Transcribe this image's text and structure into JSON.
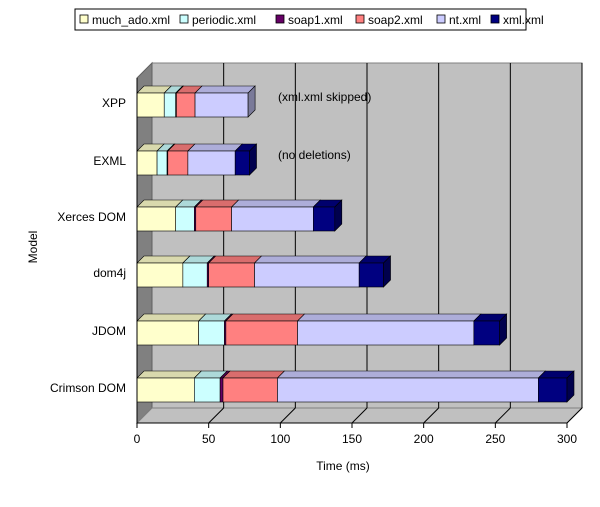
{
  "chart_data": {
    "type": "bar",
    "orientation": "horizontal",
    "stacked": true,
    "three_d": true,
    "categories": [
      "XPP",
      "EXML",
      "Xerces DOM",
      "dom4j",
      "JDOM",
      "Crimson DOM"
    ],
    "series": [
      {
        "name": "much_ado.xml",
        "color": "#FFFFCC",
        "values": [
          19,
          14,
          27,
          32,
          43,
          40
        ]
      },
      {
        "name": "periodic.xml",
        "color": "#CCFFFF",
        "values": [
          8,
          7,
          13,
          17,
          18,
          18
        ]
      },
      {
        "name": "soap1.xml",
        "color": "#660066",
        "values": [
          0.5,
          0.5,
          1,
          1,
          1,
          2
        ]
      },
      {
        "name": "soap2.xml",
        "color": "#FF8080",
        "values": [
          13,
          14,
          25,
          32,
          50,
          38
        ]
      },
      {
        "name": "nt.xml",
        "color": "#CCCCFF",
        "values": [
          37,
          33,
          57,
          73,
          123,
          182
        ]
      },
      {
        "name": "xml.xml",
        "color": "#000080",
        "values": [
          0,
          10,
          15,
          17,
          18,
          20
        ]
      }
    ],
    "xlabel": "Time (ms)",
    "ylabel": "Model",
    "xlim": [
      0,
      300
    ],
    "xticks": [
      0,
      50,
      100,
      150,
      200,
      250,
      300
    ],
    "grid": true,
    "legend_position": "top",
    "annotations": [
      {
        "category": "XPP",
        "text": "(xml.xml skipped)"
      },
      {
        "category": "EXML",
        "text": "(no deletions)"
      }
    ],
    "colors": {
      "wall": "#C0C0C0",
      "floor": "#C0C0C0",
      "grid": "#000000"
    }
  }
}
